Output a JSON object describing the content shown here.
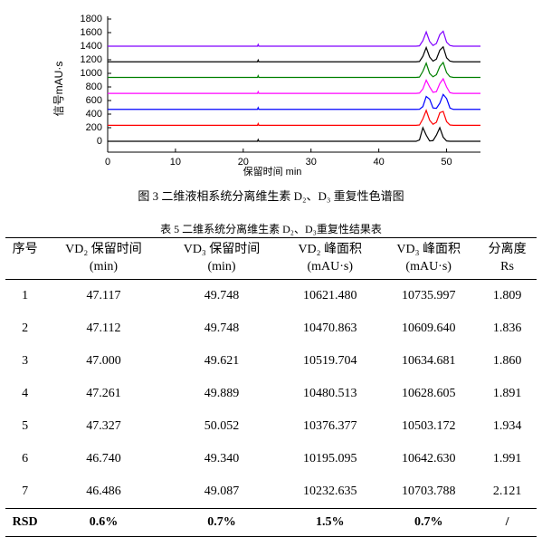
{
  "chart_data": {
    "type": "line",
    "xlabel": "保留时间 min",
    "ylabel": "信号mAU·s",
    "xlim": [
      0,
      55
    ],
    "ylim": [
      -160,
      1840
    ],
    "xticks": [
      0,
      10,
      20,
      30,
      40,
      50
    ],
    "yticks": [
      0,
      200,
      400,
      600,
      800,
      1000,
      1200,
      1400,
      1600,
      1800
    ],
    "x": [
      0,
      22.1,
      22.2,
      22.3,
      45.5,
      46,
      46.5,
      47,
      47.5,
      48,
      48.5,
      49,
      49.5,
      50,
      50.5,
      51,
      55
    ],
    "series": [
      {
        "color": "#000000",
        "values": [
          0,
          0,
          25,
          0,
          0,
          20,
          200,
          90,
          5,
          10,
          90,
          200,
          60,
          5,
          0,
          0,
          0
        ]
      },
      {
        "color": "#ff0000",
        "values": [
          235,
          235,
          260,
          235,
          235,
          240,
          330,
          455,
          310,
          250,
          280,
          420,
          440,
          290,
          240,
          235,
          235
        ]
      },
      {
        "color": "#0000ff",
        "values": [
          470,
          470,
          495,
          470,
          470,
          472,
          510,
          660,
          620,
          490,
          485,
          560,
          690,
          630,
          490,
          470,
          470
        ]
      },
      {
        "color": "#ff00ff",
        "values": [
          705,
          705,
          730,
          705,
          705,
          710,
          770,
          900,
          800,
          720,
          730,
          850,
          920,
          800,
          715,
          705,
          705
        ]
      },
      {
        "color": "#008000",
        "values": [
          940,
          940,
          965,
          940,
          940,
          945,
          1030,
          1150,
          1000,
          950,
          980,
          1100,
          1160,
          1010,
          950,
          940,
          940
        ]
      },
      {
        "color": "#000000",
        "values": [
          1170,
          1170,
          1195,
          1170,
          1170,
          1175,
          1250,
          1380,
          1240,
          1180,
          1210,
          1340,
          1390,
          1230,
          1180,
          1170,
          1170
        ]
      },
      {
        "color": "#8000ff",
        "values": [
          1400,
          1400,
          1425,
          1400,
          1400,
          1405,
          1480,
          1610,
          1470,
          1410,
          1440,
          1570,
          1620,
          1460,
          1410,
          1400,
          1400
        ]
      }
    ]
  },
  "figure_caption": "图 3  二维液相系统分离维生素 D₂、D₃ 重复性色谱图",
  "table": {
    "caption": "表 5  二维系统分离维生素 D₂、D₃重复性结果表",
    "header": [
      [
        "序号"
      ],
      [
        "VD₂ 保留时间",
        "(min)"
      ],
      [
        "VD₃ 保留时间",
        "(min)"
      ],
      [
        "VD₂ 峰面积",
        "(mAU·s)"
      ],
      [
        "VD₃ 峰面积",
        "(mAU·s)"
      ],
      [
        "分离度",
        "Rs"
      ]
    ],
    "rows": [
      [
        "1",
        "47.117",
        "49.748",
        "10621.480",
        "10735.997",
        "1.809"
      ],
      [
        "2",
        "47.112",
        "49.748",
        "10470.863",
        "10609.640",
        "1.836"
      ],
      [
        "3",
        "47.000",
        "49.621",
        "10519.704",
        "10634.681",
        "1.860"
      ],
      [
        "4",
        "47.261",
        "49.889",
        "10480.513",
        "10628.605",
        "1.891"
      ],
      [
        "5",
        "47.327",
        "50.052",
        "10376.377",
        "10503.172",
        "1.934"
      ],
      [
        "6",
        "46.740",
        "49.340",
        "10195.095",
        "10642.630",
        "1.991"
      ],
      [
        "7",
        "46.486",
        "49.087",
        "10232.635",
        "10703.788",
        "2.121"
      ],
      [
        "RSD",
        "0.6%",
        "0.7%",
        "1.5%",
        "0.7%",
        "/"
      ]
    ]
  }
}
